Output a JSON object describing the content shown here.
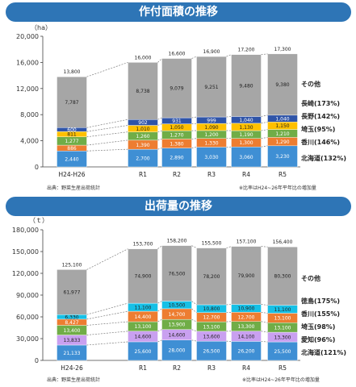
{
  "sections": [
    {
      "banner": "作付面積の推移",
      "yunit": "（ha）",
      "source": "出典：野菜生産出荷統計",
      "note": "※比率はH24~26年平年比の増加量"
    },
    {
      "banner": "出荷量の推移",
      "yunit": "（ｔ）",
      "source": "出典：野菜生産出荷統計",
      "note": "※比率はH24~26年平年比の増加量"
    }
  ],
  "colors": {
    "hokkaido": "#3f8fd4",
    "kagawa": "#ed7d31",
    "saitama": "#70ad47",
    "nagano": "#ffc000",
    "nagasaki": "#2f54a8",
    "tokushima": "#16c0e6",
    "aichi": "#c9a0f0",
    "other": "#a6a6a6",
    "trend": "#7f7f7f"
  },
  "chart_data": [
    {
      "type": "bar",
      "stacked": true,
      "categories": [
        "H24-H26",
        "R1",
        "R2",
        "R3",
        "R4",
        "R5"
      ],
      "ylim": [
        0,
        20000
      ],
      "yticks": [
        "0",
        "4,000",
        "8,000",
        "12,000",
        "16,000",
        "20,000"
      ],
      "totals": [
        "13,800",
        "16,000",
        "16,600",
        "16,900",
        "17,200",
        "17,300"
      ],
      "series": [
        {
          "name": "北海道(132%)",
          "color_key": "hokkaido",
          "values": [
            2440,
            2700,
            2890,
            3030,
            3060,
            3230
          ],
          "labels": [
            "2,440",
            "2,700",
            "2,890",
            "3,030",
            "3,060",
            "3,230"
          ]
        },
        {
          "name": "香川(146%)",
          "color_key": "kagawa",
          "values": [
            886,
            1390,
            1380,
            1330,
            1300,
            1290
          ],
          "labels": [
            "886",
            "1,390",
            "1,380",
            "1,330",
            "1,300",
            "1,290"
          ]
        },
        {
          "name": "埼玉(95%)",
          "color_key": "saitama",
          "values": [
            1277,
            1260,
            1270,
            1200,
            1190,
            1210
          ],
          "labels": [
            "1,277",
            "1,260",
            "1,270",
            "1,200",
            "1,190",
            "1,210"
          ]
        },
        {
          "name": "長野(142%)",
          "color_key": "nagano",
          "values": [
            811,
            1010,
            1050,
            1090,
            1130,
            1150
          ],
          "labels": [
            "811",
            "1,010",
            "1,050",
            "1,090",
            "1,130",
            "1,150"
          ]
        },
        {
          "name": "長崎(173%)",
          "color_key": "nagasaki",
          "values": [
            600,
            902,
            931,
            999,
            1040,
            1040
          ],
          "labels": [
            "600",
            "902",
            "931",
            "999",
            "1,040",
            "1,040"
          ]
        },
        {
          "name": "その他",
          "color_key": "other",
          "values": [
            7787,
            8738,
            9079,
            9251,
            9480,
            9380
          ],
          "labels": [
            "7,787",
            "8,738",
            "9,079",
            "9,251",
            "9,480",
            "9,380"
          ]
        }
      ]
    },
    {
      "type": "bar",
      "stacked": true,
      "categories": [
        "H24-26",
        "R1",
        "R2",
        "R3",
        "R4",
        "R5"
      ],
      "ylim": [
        0,
        180000
      ],
      "yticks": [
        "0",
        "30,000",
        "60,000",
        "90,000",
        "120,000",
        "150,000",
        "180,000"
      ],
      "totals": [
        "125,100",
        "153,700",
        "158,200",
        "155,500",
        "157,100",
        "156,400"
      ],
      "series": [
        {
          "name": "北海道(121%)",
          "color_key": "hokkaido",
          "values": [
            21133,
            25600,
            28000,
            26500,
            26200,
            25500
          ],
          "labels": [
            "21,133",
            "25,600",
            "28,000",
            "26,500",
            "26,200",
            "25,500"
          ]
        },
        {
          "name": "愛知(96%)",
          "color_key": "aichi",
          "values": [
            13833,
            14600,
            14600,
            13600,
            14100,
            13300
          ],
          "labels": [
            "13,833",
            "14,600",
            "14,600",
            "13,600",
            "14,100",
            "13,300"
          ]
        },
        {
          "name": "埼玉(98%)",
          "color_key": "saitama",
          "values": [
            13400,
            13100,
            13900,
            13100,
            13300,
            13100
          ],
          "labels": [
            "13,400",
            "13,100",
            "13,900",
            "13,100",
            "13,300",
            "13,100"
          ]
        },
        {
          "name": "香川(155%)",
          "color_key": "kagawa",
          "values": [
            8427,
            14400,
            14700,
            12700,
            12700,
            13100
          ],
          "labels": [
            "8,427",
            "14,400",
            "14,700",
            "12,700",
            "12,700",
            "13,100"
          ]
        },
        {
          "name": "徳島(175%)",
          "color_key": "tokushima",
          "values": [
            6330,
            11100,
            10500,
            10800,
            10900,
            11100
          ],
          "labels": [
            "6,330",
            "11,100",
            "10,500",
            "10,800",
            "10,900",
            "11,100"
          ]
        },
        {
          "name": "その他",
          "color_key": "other",
          "values": [
            61977,
            74900,
            76500,
            78200,
            79900,
            80300
          ],
          "labels": [
            "61,977",
            "74,900",
            "76,500",
            "78,200",
            "79,900",
            "80,300"
          ]
        }
      ]
    }
  ]
}
